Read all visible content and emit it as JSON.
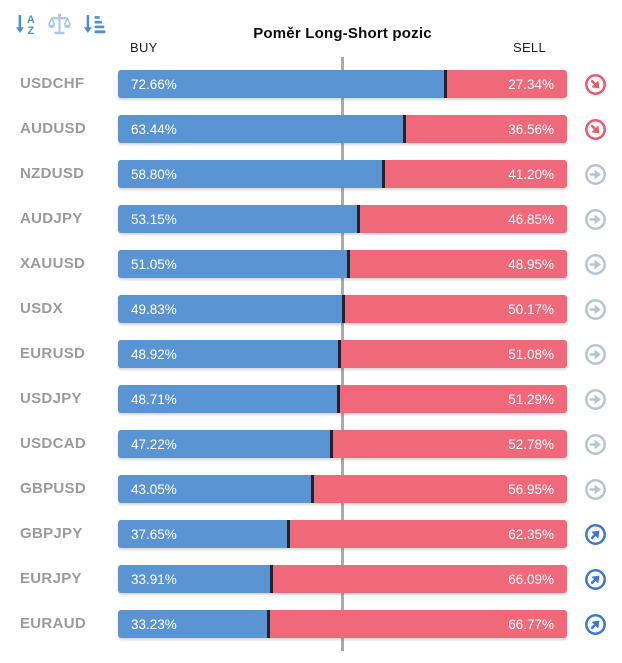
{
  "title": "Poměr Long-Short pozic",
  "columns": {
    "buy": "BUY",
    "sell": "SELL"
  },
  "toolbar": {
    "sort_alpha_icon": "sort-alphabetical",
    "balance_scale_icon": "balance-scale",
    "sort_amount_icon": "sort-by-value"
  },
  "colors": {
    "buy_bar": "#5b94d2",
    "sell_bar": "#f0697b",
    "bar_divider": "#2a2026",
    "pair_label": "#9b9b9b",
    "center_line": "#ababab",
    "signal_down": "#f2566a",
    "signal_neutral": "#bac4d1",
    "signal_up": "#3a78d1",
    "toolbar_icon": "#4a8ed6",
    "toolbar_icon_muted": "#a9c7e6"
  },
  "chart_data": {
    "type": "bar",
    "orientation": "horizontal",
    "stacked": true,
    "title": "Poměr Long-Short pozic",
    "categories": [
      "USDCHF",
      "AUDUSD",
      "NZDUSD",
      "AUDJPY",
      "XAUUSD",
      "USDX",
      "EURUSD",
      "USDJPY",
      "USDCAD",
      "GBPUSD",
      "GBPJPY",
      "EURJPY",
      "EURAUD"
    ],
    "series": [
      {
        "name": "BUY",
        "color": "#5b94d2",
        "values": [
          72.66,
          63.44,
          58.8,
          53.15,
          51.05,
          49.83,
          48.92,
          48.71,
          47.22,
          43.05,
          37.65,
          33.91,
          33.23
        ]
      },
      {
        "name": "SELL",
        "color": "#f0697b",
        "values": [
          27.34,
          36.56,
          41.2,
          46.85,
          48.95,
          50.17,
          51.08,
          51.29,
          52.78,
          56.95,
          62.35,
          66.09,
          66.77
        ]
      }
    ],
    "xlim": [
      0,
      100
    ],
    "reference_line": 50,
    "value_format": "percent",
    "legend_position": "top (BUY left, SELL right)",
    "grid": false
  },
  "rows": [
    {
      "pair": "USDCHF",
      "buy_label": "72.66%",
      "sell_label": "27.34%",
      "buy_pct": 72.66,
      "sell_pct": 27.34,
      "signal": "down"
    },
    {
      "pair": "AUDUSD",
      "buy_label": "63.44%",
      "sell_label": "36.56%",
      "buy_pct": 63.44,
      "sell_pct": 36.56,
      "signal": "down"
    },
    {
      "pair": "NZDUSD",
      "buy_label": "58.80%",
      "sell_label": "41.20%",
      "buy_pct": 58.8,
      "sell_pct": 41.2,
      "signal": "neutral"
    },
    {
      "pair": "AUDJPY",
      "buy_label": "53.15%",
      "sell_label": "46.85%",
      "buy_pct": 53.15,
      "sell_pct": 46.85,
      "signal": "neutral"
    },
    {
      "pair": "XAUUSD",
      "buy_label": "51.05%",
      "sell_label": "48.95%",
      "buy_pct": 51.05,
      "sell_pct": 48.95,
      "signal": "neutral"
    },
    {
      "pair": "USDX",
      "buy_label": "49.83%",
      "sell_label": "50.17%",
      "buy_pct": 49.83,
      "sell_pct": 50.17,
      "signal": "neutral"
    },
    {
      "pair": "EURUSD",
      "buy_label": "48.92%",
      "sell_label": "51.08%",
      "buy_pct": 48.92,
      "sell_pct": 51.08,
      "signal": "neutral"
    },
    {
      "pair": "USDJPY",
      "buy_label": "48.71%",
      "sell_label": "51.29%",
      "buy_pct": 48.71,
      "sell_pct": 51.29,
      "signal": "neutral"
    },
    {
      "pair": "USDCAD",
      "buy_label": "47.22%",
      "sell_label": "52.78%",
      "buy_pct": 47.22,
      "sell_pct": 52.78,
      "signal": "neutral"
    },
    {
      "pair": "GBPUSD",
      "buy_label": "43.05%",
      "sell_label": "56.95%",
      "buy_pct": 43.05,
      "sell_pct": 56.95,
      "signal": "neutral"
    },
    {
      "pair": "GBPJPY",
      "buy_label": "37.65%",
      "sell_label": "62.35%",
      "buy_pct": 37.65,
      "sell_pct": 62.35,
      "signal": "up"
    },
    {
      "pair": "EURJPY",
      "buy_label": "33.91%",
      "sell_label": "66.09%",
      "buy_pct": 33.91,
      "sell_pct": 66.09,
      "signal": "up"
    },
    {
      "pair": "EURAUD",
      "buy_label": "33.23%",
      "sell_label": "66.77%",
      "buy_pct": 33.23,
      "sell_pct": 66.77,
      "signal": "up"
    }
  ]
}
